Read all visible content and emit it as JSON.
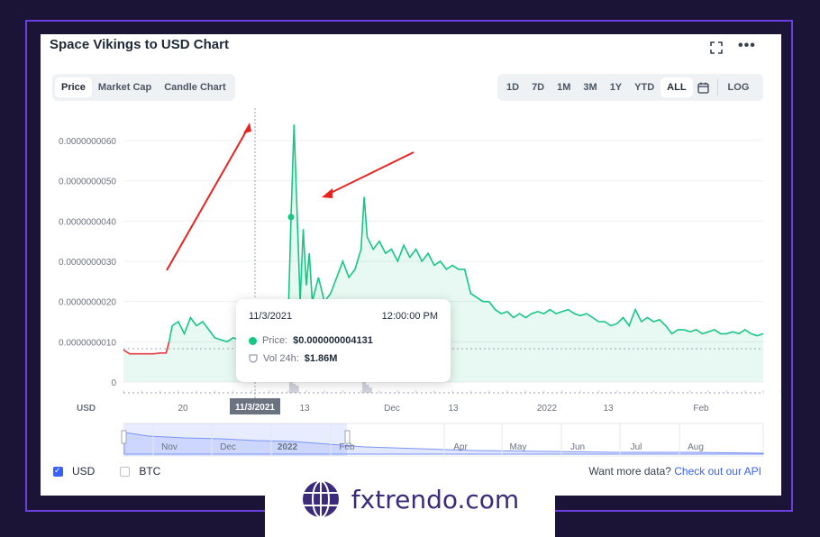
{
  "title": "Space Vikings to USD Chart",
  "view_tabs": [
    "Price",
    "Market Cap",
    "Candle Chart"
  ],
  "active_view_tab": "Price",
  "range_options": [
    "1D",
    "7D",
    "1M",
    "3M",
    "1Y",
    "YTD",
    "ALL"
  ],
  "active_range": "ALL",
  "log_label": "LOG",
  "currency_axis_label": "USD",
  "tooltip": {
    "date": "11/3/2021",
    "time": "12:00:00 PM",
    "price_label": "Price:",
    "price_value": "$0.000000004131",
    "volume_label": "Vol 24h:",
    "volume_value": "$1.86M"
  },
  "footer": {
    "usd_label": "USD",
    "btc_label": "BTC",
    "want_more": "Want more data?",
    "api_link": "Check out our API"
  },
  "brand": {
    "text": "fxtrendo.com"
  },
  "colors": {
    "up": "#16c784",
    "down": "#ea3943",
    "accent": "#3861fb",
    "annotation": "#e8231f"
  },
  "chart_data": {
    "type": "line",
    "y_ticks": [
      "0.0000000060",
      "0.0000000050",
      "0.0000000040",
      "0.0000000030",
      "0.0000000020",
      "0.0000000010",
      "0"
    ],
    "x_ticks": [
      "20",
      "11/3/2021",
      "13",
      "Dec",
      "13",
      "2022",
      "13",
      "Feb"
    ],
    "navigator_ticks": [
      "Nov",
      "Dec",
      "2022",
      "Feb",
      "Apr",
      "May",
      "Jun",
      "Jul",
      "Aug"
    ],
    "ylim": [
      0,
      6.5e-09
    ],
    "grid": true,
    "series": [
      {
        "x": [
          0,
          2,
          4,
          6,
          8,
          10,
          12,
          14,
          15,
          16,
          18,
          20,
          22,
          24,
          26,
          28,
          30,
          32,
          34,
          36,
          38,
          40,
          42,
          44,
          46,
          48,
          50,
          52,
          54,
          55,
          56,
          57,
          58,
          59,
          60,
          61,
          62,
          64,
          66,
          68,
          70,
          72,
          74,
          76,
          78,
          79,
          80,
          82,
          84,
          86,
          88,
          90,
          92,
          94,
          96,
          98,
          100,
          102,
          104,
          106,
          108,
          110,
          112,
          114,
          116,
          118,
          120,
          122,
          124,
          126,
          128,
          130,
          132,
          134,
          136,
          138,
          140,
          142,
          144,
          146,
          148,
          150,
          152,
          154,
          156,
          158,
          160,
          162,
          164,
          166,
          168,
          170,
          172,
          174,
          176,
          178,
          180,
          182,
          184,
          186,
          188,
          190,
          192,
          194,
          196,
          198,
          200,
          202,
          204,
          206,
          208,
          210
        ],
        "values": [
          8e-10,
          7e-10,
          7e-10,
          7e-10,
          7e-10,
          7e-10,
          7.2e-10,
          7.2e-10,
          1e-09,
          1.4e-09,
          1.5e-09,
          1.2e-09,
          1.6e-09,
          1.4e-09,
          1.5e-09,
          1.3e-09,
          1.1e-09,
          1.05e-09,
          1e-09,
          1.1e-09,
          1.05e-09,
          1.2e-09,
          1.3e-09,
          1.3e-09,
          1.2e-09,
          1.4e-09,
          1.3e-09,
          1.5e-09,
          1.4e-09,
          4.1e-09,
          6.4e-09,
          4.2e-09,
          2e-09,
          3.8e-09,
          2.4e-09,
          3.2e-09,
          2e-09,
          2.6e-09,
          2e-09,
          2.2e-09,
          2.6e-09,
          3e-09,
          2.6e-09,
          2.8e-09,
          3.3e-09,
          4.6e-09,
          3.6e-09,
          3.3e-09,
          3.5e-09,
          3.2e-09,
          3.3e-09,
          3e-09,
          3.4e-09,
          3.1e-09,
          3.3e-09,
          3e-09,
          3.2e-09,
          2.9e-09,
          3e-09,
          2.8e-09,
          2.9e-09,
          2.8e-09,
          2.8e-09,
          2.2e-09,
          2.1e-09,
          2e-09,
          2e-09,
          1.8e-09,
          1.7e-09,
          1.75e-09,
          1.6e-09,
          1.7e-09,
          1.6e-09,
          1.7e-09,
          1.75e-09,
          1.7e-09,
          1.8e-09,
          1.7e-09,
          1.75e-09,
          1.8e-09,
          1.7e-09,
          1.65e-09,
          1.7e-09,
          1.6e-09,
          1.5e-09,
          1.5e-09,
          1.4e-09,
          1.45e-09,
          1.6e-09,
          1.4e-09,
          1.8e-09,
          1.5e-09,
          1.6e-09,
          1.5e-09,
          1.55e-09,
          1.4e-09,
          1.2e-09,
          1.3e-09,
          1.3e-09,
          1.25e-09,
          1.3e-09,
          1.2e-09,
          1.25e-09,
          1.3e-09,
          1.2e-09,
          1.2e-09,
          1.25e-09,
          1.2e-09,
          1.3e-09,
          1.2e-09,
          1.15e-09,
          1.2e-09
        ]
      }
    ]
  }
}
